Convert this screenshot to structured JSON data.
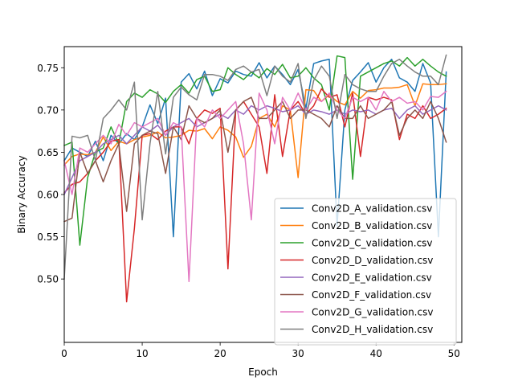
{
  "chart_data": {
    "type": "line",
    "title": "",
    "xlabel": "Epoch",
    "ylabel": "Binary Accuracy",
    "xlim": [
      0,
      51
    ],
    "ylim": [
      0.425,
      0.775
    ],
    "xticks": [
      0,
      10,
      20,
      30,
      40,
      50
    ],
    "yticks": [
      0.5,
      0.55,
      0.6,
      0.65,
      0.7,
      0.75
    ],
    "xtick_labels": [
      "0",
      "10",
      "20",
      "30",
      "40",
      "50"
    ],
    "ytick_labels": [
      "0.50",
      "0.55",
      "0.60",
      "0.65",
      "0.70",
      "0.75"
    ],
    "grid": false,
    "legend_position": "lower-right",
    "series": [
      {
        "name": "Conv2D_A_validation.csv",
        "color": "#1f77b4",
        "values": [
          0.64,
          0.655,
          0.65,
          0.645,
          0.663,
          0.64,
          0.67,
          0.66,
          0.672,
          0.665,
          0.68,
          0.706,
          0.684,
          0.714,
          0.55,
          0.733,
          0.743,
          0.725,
          0.746,
          0.717,
          0.737,
          0.732,
          0.746,
          0.742,
          0.74,
          0.756,
          0.738,
          0.752,
          0.742,
          0.73,
          0.748,
          0.702,
          0.755,
          0.758,
          0.76,
          0.563,
          0.7,
          0.735,
          0.745,
          0.756,
          0.733,
          0.75,
          0.76,
          0.738,
          0.733,
          0.722,
          0.755,
          0.732,
          0.55,
          0.745
        ]
      },
      {
        "name": "Conv2D_B_validation.csv",
        "color": "#ff7f0e",
        "values": [
          0.635,
          0.645,
          0.648,
          0.647,
          0.65,
          0.668,
          0.652,
          0.663,
          0.66,
          0.665,
          0.668,
          0.67,
          0.674,
          0.667,
          0.668,
          0.67,
          0.676,
          0.675,
          0.678,
          0.666,
          0.68,
          0.676,
          0.668,
          0.644,
          0.657,
          0.69,
          0.695,
          0.68,
          0.705,
          0.7,
          0.62,
          0.724,
          0.723,
          0.71,
          0.718,
          0.71,
          0.706,
          0.722,
          0.714,
          0.723,
          0.724,
          0.726,
          0.726,
          0.727,
          0.73,
          0.705,
          0.731,
          0.73,
          0.73,
          0.731
        ]
      },
      {
        "name": "Conv2D_C_validation.csv",
        "color": "#2ca02c",
        "values": [
          0.658,
          0.662,
          0.54,
          0.62,
          0.65,
          0.655,
          0.68,
          0.66,
          0.71,
          0.72,
          0.715,
          0.724,
          0.719,
          0.709,
          0.722,
          0.73,
          0.72,
          0.736,
          0.74,
          0.722,
          0.724,
          0.75,
          0.742,
          0.736,
          0.745,
          0.738,
          0.749,
          0.742,
          0.754,
          0.738,
          0.74,
          0.75,
          0.738,
          0.73,
          0.7,
          0.764,
          0.762,
          0.618,
          0.74,
          0.745,
          0.75,
          0.755,
          0.758,
          0.752,
          0.762,
          0.752,
          0.76,
          0.752,
          0.745,
          0.74
        ]
      },
      {
        "name": "Conv2D_D_validation.csv",
        "color": "#d62728",
        "values": [
          0.602,
          0.612,
          0.615,
          0.625,
          0.64,
          0.65,
          0.663,
          0.665,
          0.473,
          0.56,
          0.67,
          0.672,
          0.665,
          0.675,
          0.68,
          0.68,
          0.66,
          0.69,
          0.7,
          0.696,
          0.702,
          0.512,
          0.7,
          0.71,
          0.695,
          0.68,
          0.625,
          0.718,
          0.645,
          0.7,
          0.71,
          0.695,
          0.705,
          0.725,
          0.715,
          0.718,
          0.68,
          0.72,
          0.645,
          0.715,
          0.712,
          0.715,
          0.712,
          0.665,
          0.695,
          0.69,
          0.705,
          0.69,
          0.695,
          0.702
        ]
      },
      {
        "name": "Conv2D_E_validation.csv",
        "color": "#9467bd",
        "values": [
          0.6,
          0.62,
          0.64,
          0.645,
          0.65,
          0.66,
          0.665,
          0.67,
          0.66,
          0.67,
          0.68,
          0.675,
          0.682,
          0.67,
          0.68,
          0.685,
          0.69,
          0.68,
          0.685,
          0.69,
          0.695,
          0.69,
          0.7,
          0.695,
          0.705,
          0.7,
          0.705,
          0.702,
          0.698,
          0.7,
          0.705,
          0.695,
          0.7,
          0.698,
          0.695,
          0.7,
          0.695,
          0.7,
          0.698,
          0.7,
          0.695,
          0.7,
          0.702,
          0.69,
          0.7,
          0.705,
          0.695,
          0.7,
          0.705,
          0.7
        ]
      },
      {
        "name": "Conv2D_F_validation.csv",
        "color": "#8c564b",
        "values": [
          0.568,
          0.572,
          0.65,
          0.625,
          0.64,
          0.615,
          0.64,
          0.66,
          0.58,
          0.66,
          0.67,
          0.675,
          0.672,
          0.625,
          0.68,
          0.665,
          0.705,
          0.69,
          0.685,
          0.69,
          0.7,
          0.65,
          0.7,
          0.71,
          0.715,
          0.69,
          0.69,
          0.7,
          0.71,
          0.69,
          0.7,
          0.7,
          0.695,
          0.69,
          0.68,
          0.705,
          0.69,
          0.69,
          0.705,
          0.69,
          0.695,
          0.7,
          0.71,
          0.67,
          0.69,
          0.7,
          0.69,
          0.71,
          0.69,
          0.662
        ]
      },
      {
        "name": "Conv2D_G_validation.csv",
        "color": "#e377c2",
        "values": [
          0.64,
          0.6,
          0.655,
          0.65,
          0.66,
          0.67,
          0.66,
          0.683,
          0.67,
          0.685,
          0.68,
          0.685,
          0.69,
          0.67,
          0.685,
          0.68,
          0.497,
          0.69,
          0.68,
          0.7,
          0.69,
          0.7,
          0.71,
          0.66,
          0.57,
          0.72,
          0.7,
          0.66,
          0.715,
          0.7,
          0.72,
          0.7,
          0.715,
          0.71,
          0.72,
          0.7,
          0.69,
          0.715,
          0.71,
          0.715,
          0.7,
          0.722,
          0.71,
          0.715,
          0.708,
          0.71,
          0.7,
          0.716,
          0.715,
          0.722
        ]
      },
      {
        "name": "Conv2D_H_validation.csv",
        "color": "#7f7f7f",
        "values": [
          0.5,
          0.669,
          0.667,
          0.67,
          0.64,
          0.69,
          0.7,
          0.712,
          0.7,
          0.733,
          0.57,
          0.66,
          0.722,
          0.648,
          0.715,
          0.727,
          0.718,
          0.712,
          0.742,
          0.742,
          0.74,
          0.735,
          0.748,
          0.752,
          0.745,
          0.748,
          0.717,
          0.752,
          0.74,
          0.733,
          0.755,
          0.69,
          0.735,
          0.752,
          0.74,
          0.69,
          0.742,
          0.73,
          0.725,
          0.722,
          0.722,
          0.74,
          0.755,
          0.76,
          0.752,
          0.745,
          0.74,
          0.74,
          0.73,
          0.765
        ]
      }
    ]
  }
}
